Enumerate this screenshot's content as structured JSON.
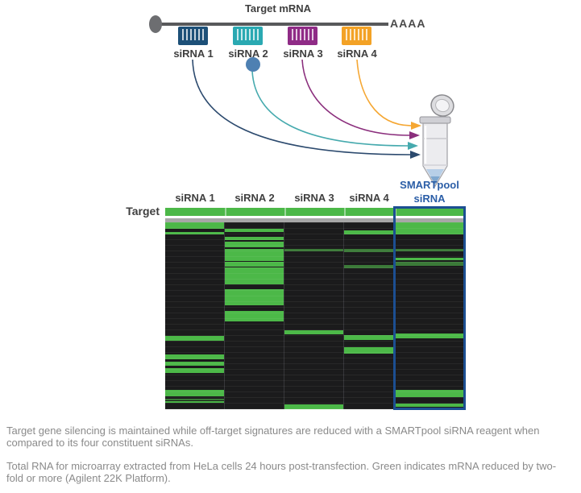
{
  "figure": {
    "title": "Target mRNA",
    "poly_a_tail": "AAAA",
    "sirnas": [
      {
        "label": "siRNA 1",
        "color": "#1d5078",
        "arrow_color": "#2c4a6e"
      },
      {
        "label": "siRNA 2",
        "color": "#2aa9b2",
        "arrow_color": "#46aaae"
      },
      {
        "label": "siRNA 3",
        "color": "#8f2b86",
        "arrow_color": "#8b2f7d"
      },
      {
        "label": "siRNA 4",
        "color": "#f3a226",
        "arrow_color": "#f5a733"
      }
    ],
    "dot_color": "#4e80b2"
  },
  "heatmap": {
    "row_label": "Target",
    "column_headers": [
      "siRNA 1",
      "siRNA 2",
      "siRNA 3",
      "siRNA 4"
    ],
    "pool_header_line1": "SMARTpool",
    "pool_header_line2": "siRNA",
    "colors": {
      "green": "#4cb848",
      "green_dim": "#3b7a38",
      "background": "#1b1b1c",
      "gray_bar": "#a7a7a7",
      "highlight_border": "#1c4f92"
    },
    "target_row": "full-green-across-all-columns",
    "columns": [
      {
        "label": "siRNA 1",
        "stripes": [
          [
            0,
            8,
            "b"
          ],
          [
            12,
            3,
            "b"
          ],
          [
            141,
            6,
            "b"
          ],
          [
            164,
            6,
            "b"
          ],
          [
            173,
            5,
            "b"
          ],
          [
            181,
            6,
            "b"
          ],
          [
            208,
            8,
            "b"
          ],
          [
            219,
            2,
            "d"
          ],
          [
            222,
            2,
            "b"
          ]
        ]
      },
      {
        "label": "siRNA 2",
        "stripes": [
          [
            8,
            4,
            "b"
          ],
          [
            18,
            4,
            "b"
          ],
          [
            24,
            7,
            "b"
          ],
          [
            33,
            15,
            "b"
          ],
          [
            49,
            6,
            "b"
          ],
          [
            56,
            21,
            "b"
          ],
          [
            83,
            20,
            "b"
          ],
          [
            110,
            13,
            "b"
          ]
        ]
      },
      {
        "label": "siRNA 3",
        "stripes": [
          [
            33,
            3,
            "d"
          ],
          [
            134,
            5,
            "b"
          ],
          [
            226,
            6,
            "b"
          ]
        ]
      },
      {
        "label": "siRNA 4",
        "stripes": [
          [
            10,
            5,
            "b"
          ],
          [
            33,
            4,
            "d"
          ],
          [
            53,
            4,
            "d"
          ],
          [
            140,
            6,
            "b"
          ],
          [
            155,
            8,
            "b"
          ]
        ]
      },
      {
        "label": "SMARTpool siRNA",
        "stripes": [
          [
            0,
            15,
            "b"
          ],
          [
            33,
            3,
            "d"
          ],
          [
            44,
            3,
            "b"
          ],
          [
            49,
            5,
            "d"
          ],
          [
            138,
            6,
            "b"
          ],
          [
            208,
            9,
            "b"
          ],
          [
            225,
            4,
            "b"
          ]
        ]
      }
    ]
  },
  "captions": {
    "paragraph1": "Target gene silencing is maintained while off-target signatures are reduced with a SMARTpool siRNA reagent when compared to its four constituent siRNAs.",
    "paragraph2": "Total RNA for microarray extracted from HeLa cells 24 hours post-transfection. Green indicates mRNA reduced by two-fold or more (Agilent 22K Platform)."
  }
}
